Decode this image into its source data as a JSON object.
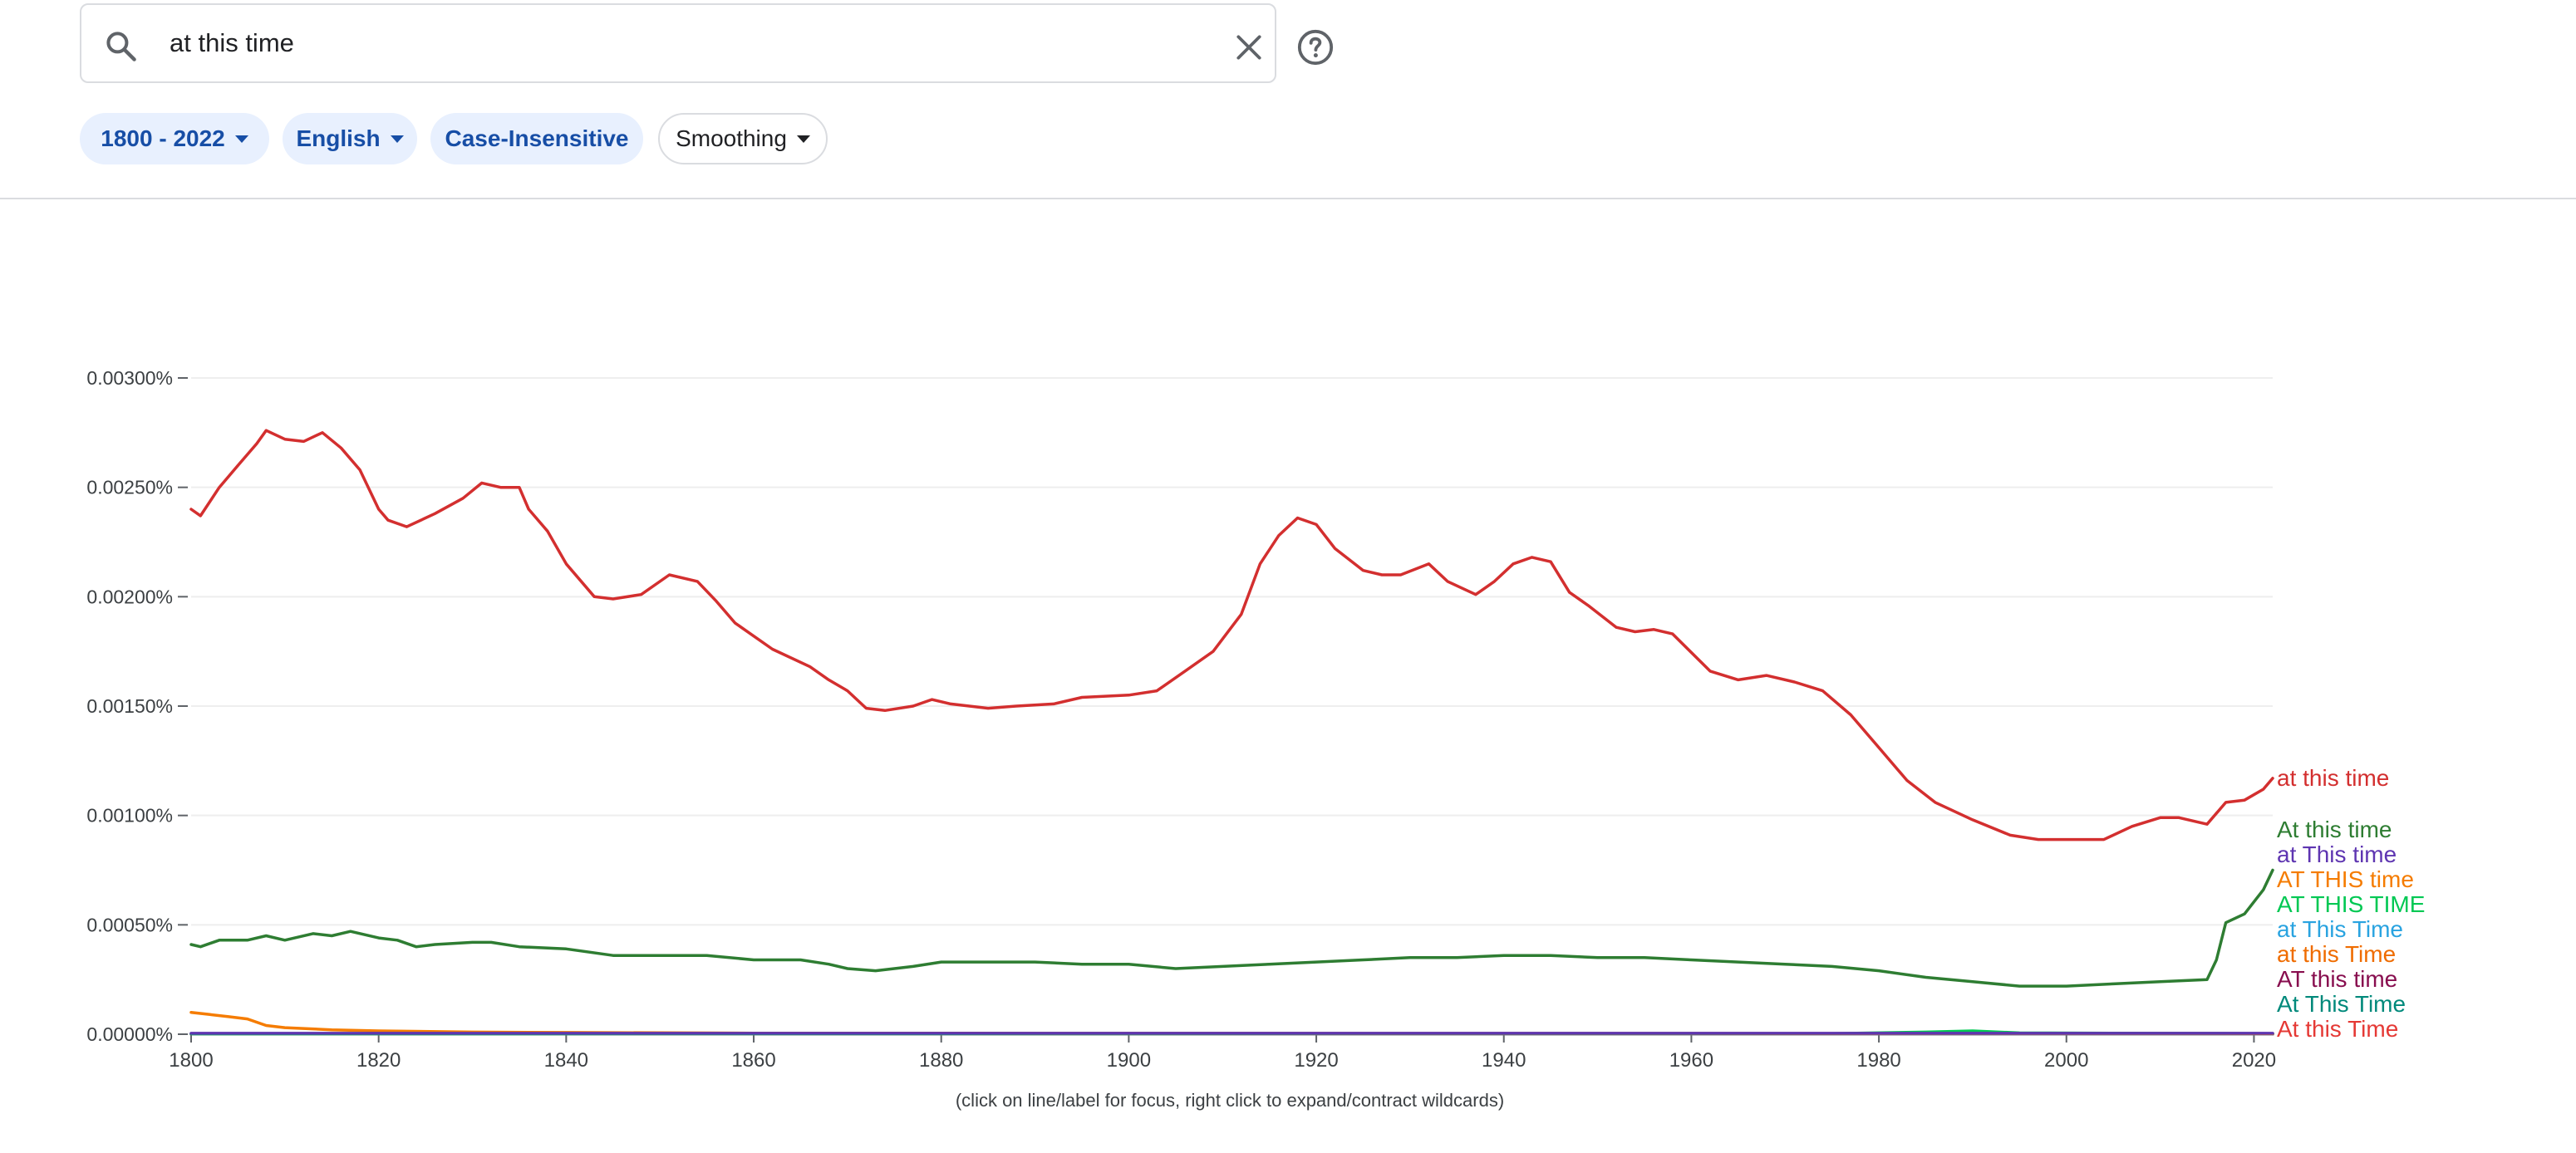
{
  "search": {
    "query": "at this time",
    "search_icon": "search-icon",
    "clear_icon": "close-icon",
    "help_icon": "help-icon"
  },
  "filters": {
    "years": "1800 - 2022",
    "language": "English",
    "case": "Case-Insensitive",
    "smoothing": "Smoothing"
  },
  "chart_data": {
    "type": "line",
    "xlim": [
      1800,
      2022
    ],
    "ylim": [
      0,
      0.003
    ],
    "x_ticks": [
      1800,
      1820,
      1840,
      1860,
      1880,
      1900,
      1920,
      1940,
      1960,
      1980,
      2000,
      2020
    ],
    "y_ticks": [
      {
        "value": 0.0,
        "label": "0.00000%"
      },
      {
        "value": 0.0005,
        "label": "0.00050%"
      },
      {
        "value": 0.001,
        "label": "0.00100%"
      },
      {
        "value": 0.0015,
        "label": "0.00150%"
      },
      {
        "value": 0.002,
        "label": "0.00200%"
      },
      {
        "value": 0.0025,
        "label": "0.00250%"
      },
      {
        "value": 0.003,
        "label": "0.00300%"
      }
    ],
    "grid": true,
    "legend": "right",
    "note": "(click on line/label for focus, right click to expand/contract wildcards)",
    "series": [
      {
        "name": "at this time",
        "color": "#d32f2f",
        "points": [
          [
            1800,
            0.0024
          ],
          [
            1801,
            0.00237
          ],
          [
            1803,
            0.0025
          ],
          [
            1805,
            0.0026
          ],
          [
            1807,
            0.0027
          ],
          [
            1808,
            0.00276
          ],
          [
            1810,
            0.00272
          ],
          [
            1812,
            0.00271
          ],
          [
            1814,
            0.00275
          ],
          [
            1816,
            0.00268
          ],
          [
            1818,
            0.00258
          ],
          [
            1820,
            0.0024
          ],
          [
            1821,
            0.00235
          ],
          [
            1823,
            0.00232
          ],
          [
            1826,
            0.00238
          ],
          [
            1829,
            0.00245
          ],
          [
            1831,
            0.00252
          ],
          [
            1833,
            0.0025
          ],
          [
            1835,
            0.0025
          ],
          [
            1836,
            0.0024
          ],
          [
            1838,
            0.0023
          ],
          [
            1840,
            0.00215
          ],
          [
            1843,
            0.002
          ],
          [
            1845,
            0.00199
          ],
          [
            1848,
            0.00201
          ],
          [
            1851,
            0.0021
          ],
          [
            1854,
            0.00207
          ],
          [
            1856,
            0.00198
          ],
          [
            1858,
            0.00188
          ],
          [
            1860,
            0.00182
          ],
          [
            1862,
            0.00176
          ],
          [
            1866,
            0.00168
          ],
          [
            1868,
            0.00162
          ],
          [
            1870,
            0.00157
          ],
          [
            1872,
            0.00149
          ],
          [
            1874,
            0.00148
          ],
          [
            1877,
            0.0015
          ],
          [
            1879,
            0.00153
          ],
          [
            1881,
            0.00151
          ],
          [
            1885,
            0.00149
          ],
          [
            1888,
            0.0015
          ],
          [
            1892,
            0.00151
          ],
          [
            1895,
            0.00154
          ],
          [
            1900,
            0.00155
          ],
          [
            1903,
            0.00157
          ],
          [
            1906,
            0.00166
          ],
          [
            1909,
            0.00175
          ],
          [
            1912,
            0.00192
          ],
          [
            1914,
            0.00215
          ],
          [
            1916,
            0.00228
          ],
          [
            1918,
            0.00236
          ],
          [
            1920,
            0.00233
          ],
          [
            1922,
            0.00222
          ],
          [
            1925,
            0.00212
          ],
          [
            1927,
            0.0021
          ],
          [
            1929,
            0.0021
          ],
          [
            1932,
            0.00215
          ],
          [
            1934,
            0.00207
          ],
          [
            1937,
            0.00201
          ],
          [
            1939,
            0.00207
          ],
          [
            1941,
            0.00215
          ],
          [
            1943,
            0.00218
          ],
          [
            1945,
            0.00216
          ],
          [
            1947,
            0.00202
          ],
          [
            1949,
            0.00196
          ],
          [
            1952,
            0.00186
          ],
          [
            1954,
            0.00184
          ],
          [
            1956,
            0.00185
          ],
          [
            1958,
            0.00183
          ],
          [
            1962,
            0.00166
          ],
          [
            1965,
            0.00162
          ],
          [
            1968,
            0.00164
          ],
          [
            1971,
            0.00161
          ],
          [
            1974,
            0.00157
          ],
          [
            1977,
            0.00146
          ],
          [
            1980,
            0.00131
          ],
          [
            1983,
            0.00116
          ],
          [
            1986,
            0.00106
          ],
          [
            1990,
            0.00098
          ],
          [
            1994,
            0.00091
          ],
          [
            1997,
            0.00089
          ],
          [
            2000,
            0.00089
          ],
          [
            2004,
            0.00089
          ],
          [
            2007,
            0.00095
          ],
          [
            2010,
            0.00099
          ],
          [
            2012,
            0.00099
          ],
          [
            2015,
            0.00096
          ],
          [
            2017,
            0.00106
          ],
          [
            2019,
            0.00107
          ],
          [
            2021,
            0.00112
          ],
          [
            2022,
            0.00117
          ]
        ]
      },
      {
        "name": "At this time",
        "color": "#2e7d32",
        "points": [
          [
            1800,
            0.00041
          ],
          [
            1801,
            0.0004
          ],
          [
            1803,
            0.00043
          ],
          [
            1806,
            0.00043
          ],
          [
            1808,
            0.00045
          ],
          [
            1810,
            0.00043
          ],
          [
            1813,
            0.00046
          ],
          [
            1815,
            0.00045
          ],
          [
            1817,
            0.00047
          ],
          [
            1820,
            0.00044
          ],
          [
            1822,
            0.00043
          ],
          [
            1824,
            0.0004
          ],
          [
            1826,
            0.00041
          ],
          [
            1830,
            0.00042
          ],
          [
            1832,
            0.00042
          ],
          [
            1835,
            0.0004
          ],
          [
            1840,
            0.00039
          ],
          [
            1845,
            0.00036
          ],
          [
            1850,
            0.00036
          ],
          [
            1855,
            0.00036
          ],
          [
            1860,
            0.00034
          ],
          [
            1865,
            0.00034
          ],
          [
            1868,
            0.00032
          ],
          [
            1870,
            0.0003
          ],
          [
            1873,
            0.00029
          ],
          [
            1877,
            0.00031
          ],
          [
            1880,
            0.00033
          ],
          [
            1885,
            0.00033
          ],
          [
            1890,
            0.00033
          ],
          [
            1895,
            0.00032
          ],
          [
            1900,
            0.00032
          ],
          [
            1905,
            0.0003
          ],
          [
            1910,
            0.00031
          ],
          [
            1915,
            0.00032
          ],
          [
            1920,
            0.00033
          ],
          [
            1925,
            0.00034
          ],
          [
            1930,
            0.00035
          ],
          [
            1935,
            0.00035
          ],
          [
            1940,
            0.00036
          ],
          [
            1945,
            0.00036
          ],
          [
            1950,
            0.00035
          ],
          [
            1955,
            0.00035
          ],
          [
            1960,
            0.00034
          ],
          [
            1965,
            0.00033
          ],
          [
            1970,
            0.00032
          ],
          [
            1975,
            0.00031
          ],
          [
            1980,
            0.00029
          ],
          [
            1985,
            0.00026
          ],
          [
            1990,
            0.00024
          ],
          [
            1995,
            0.00022
          ],
          [
            2000,
            0.00022
          ],
          [
            2005,
            0.00023
          ],
          [
            2010,
            0.00024
          ],
          [
            2015,
            0.00025
          ],
          [
            2016,
            0.00034
          ],
          [
            2017,
            0.00051
          ],
          [
            2019,
            0.00055
          ],
          [
            2021,
            0.00066
          ],
          [
            2022,
            0.00075
          ]
        ]
      },
      {
        "name": "at This time",
        "color": "#5e35b1",
        "points": [
          [
            1800,
            4e-06
          ],
          [
            2022,
            4e-06
          ]
        ]
      },
      {
        "name": "AT THIS time",
        "color": "#f57c00",
        "points": [
          [
            1800,
            0.0001
          ],
          [
            1802,
            9e-05
          ],
          [
            1804,
            8e-05
          ],
          [
            1806,
            7e-05
          ],
          [
            1808,
            4e-05
          ],
          [
            1810,
            3e-05
          ],
          [
            1815,
            2e-05
          ],
          [
            1820,
            1.5e-05
          ],
          [
            1830,
            1e-05
          ],
          [
            1840,
            8e-06
          ],
          [
            1860,
            5e-06
          ],
          [
            1900,
            4e-06
          ],
          [
            2022,
            3e-06
          ]
        ]
      },
      {
        "name": "AT THIS TIME",
        "color": "#00c853",
        "points": [
          [
            1800,
            2e-06
          ],
          [
            1975,
            3e-06
          ],
          [
            1985,
            1e-05
          ],
          [
            1990,
            1.5e-05
          ],
          [
            1995,
            6e-06
          ],
          [
            2022,
            3e-06
          ]
        ]
      },
      {
        "name": "at This Time",
        "color": "#29a3e0",
        "points": [
          [
            1800,
            2e-06
          ],
          [
            2022,
            2e-06
          ]
        ]
      },
      {
        "name": "at this Time",
        "color": "#ef6c00",
        "points": [
          [
            1800,
            2e-06
          ],
          [
            2022,
            2e-06
          ]
        ]
      },
      {
        "name": "AT this time",
        "color": "#880e4f",
        "points": [
          [
            1800,
            1e-06
          ],
          [
            2022,
            1e-06
          ]
        ]
      },
      {
        "name": "At This Time",
        "color": "#00897b",
        "points": [
          [
            1800,
            1e-06
          ],
          [
            2022,
            1e-06
          ]
        ]
      },
      {
        "name": "At this Time",
        "color": "#e53935",
        "points": [
          [
            1800,
            1e-06
          ],
          [
            2022,
            1e-06
          ]
        ]
      },
      {
        "name": "",
        "color": "#6a1b9a",
        "points": [
          [
            1800,
            3e-06
          ],
          [
            2022,
            3e-06
          ]
        ]
      }
    ]
  }
}
